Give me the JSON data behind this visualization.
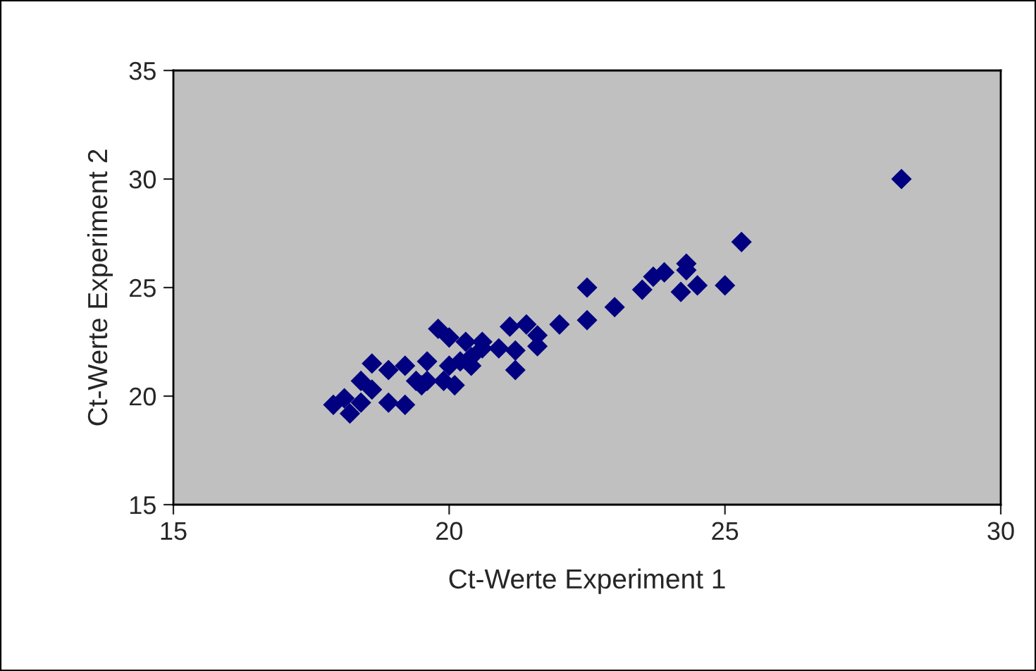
{
  "chart_data": {
    "type": "scatter",
    "xlabel": "Ct-Werte Experiment 1",
    "ylabel": "Ct-Werte Experiment 2",
    "x": [
      17.9,
      18.2,
      18.1,
      18.4,
      18.6,
      18.4,
      18.6,
      18.9,
      18.9,
      19.2,
      19.2,
      19.4,
      19.8,
      19.6,
      19.9,
      20.1,
      20.0,
      20.2,
      20.3,
      20.4,
      20.6,
      20.9,
      19.6,
      20.0,
      19.5,
      20.4,
      20.6,
      21.1,
      21.2,
      21.2,
      21.4,
      21.6,
      21.6,
      22.0,
      22.5,
      23.0,
      22.5,
      23.5,
      23.7,
      23.9,
      24.3,
      24.3,
      24.2,
      24.5,
      25.0,
      25.3,
      28.2
    ],
    "series": [
      {
        "color": "#000080",
        "values": [
          19.6,
          19.2,
          19.9,
          19.7,
          21.5,
          20.7,
          20.3,
          21.2,
          19.7,
          19.6,
          21.4,
          20.7,
          23.1,
          21.6,
          20.7,
          20.5,
          22.7,
          21.6,
          22.5,
          21.4,
          22.5,
          22.2,
          20.7,
          21.4,
          20.5,
          21.8,
          22.2,
          23.2,
          21.2,
          22.1,
          23.3,
          22.8,
          22.3,
          23.3,
          25.0,
          24.1,
          23.5,
          24.9,
          25.5,
          25.7,
          25.8,
          26.1,
          24.8,
          25.1,
          25.1,
          27.1,
          30.0
        ]
      }
    ],
    "xlim": [
      15,
      30
    ],
    "ylim": [
      15,
      35
    ],
    "xticks": [
      15,
      20,
      25,
      30
    ],
    "yticks": [
      15,
      20,
      25,
      30,
      35
    ],
    "marker": "diamond",
    "grid": false,
    "legend": false
  }
}
